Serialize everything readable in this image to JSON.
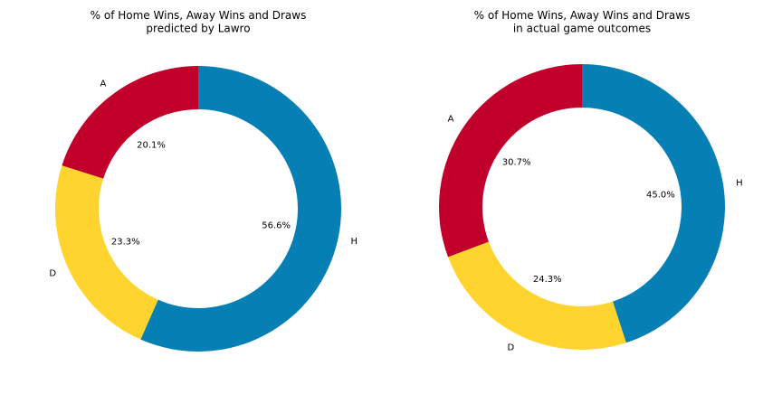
{
  "chart_data": [
    {
      "type": "pie",
      "donut": true,
      "title": "% of Home Wins, Away Wins and Draws\npredicted by Lawro",
      "categories": [
        "H",
        "D",
        "A"
      ],
      "values": [
        56.6,
        23.3,
        20.1
      ],
      "value_labels": [
        "56.6%",
        "23.3%",
        "20.1%"
      ],
      "colors": [
        "#067fb4",
        "#ffd42f",
        "#c0002b"
      ],
      "start_angle": "top, clockwise",
      "legend": "none"
    },
    {
      "type": "pie",
      "donut": true,
      "title": "% of Home Wins, Away Wins and Draws\nin actual game outcomes",
      "categories": [
        "H",
        "D",
        "A"
      ],
      "values": [
        45.0,
        24.3,
        30.7
      ],
      "value_labels": [
        "45.0%",
        "24.3%",
        "30.7%"
      ],
      "colors": [
        "#067fb4",
        "#ffd42f",
        "#c0002b"
      ],
      "start_angle": "top, clockwise",
      "legend": "none"
    }
  ]
}
